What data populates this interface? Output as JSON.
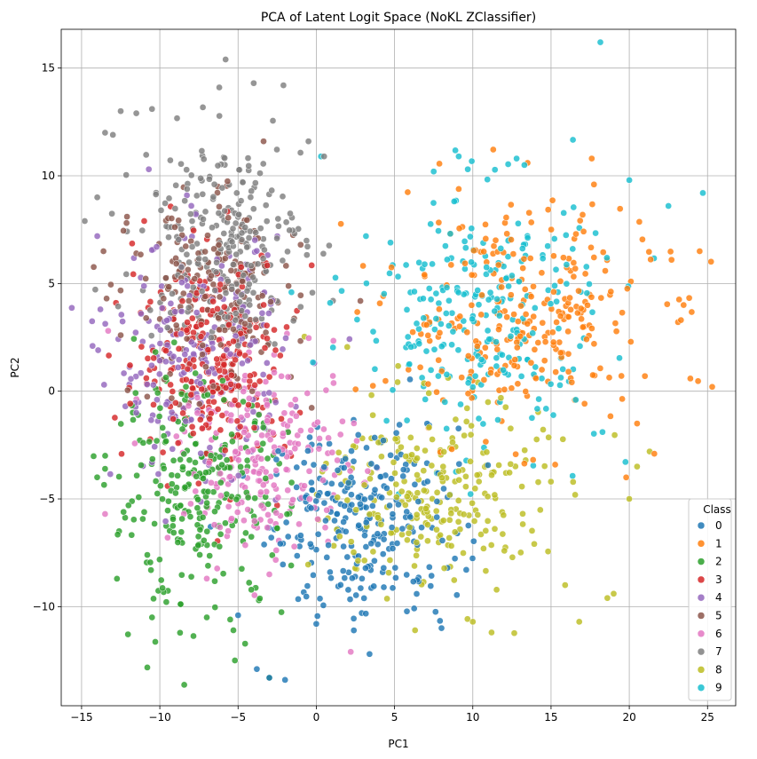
{
  "chart_data": {
    "type": "scatter",
    "title": "PCA of Latent Logit Space (NoKL ZClassifier)",
    "xlabel": "PC1",
    "ylabel": "PC2",
    "xlim": [
      -16.3,
      26.8
    ],
    "ylim": [
      -14.6,
      16.8
    ],
    "x_ticks": [
      -15,
      -10,
      -5,
      0,
      5,
      10,
      15,
      20,
      25
    ],
    "y_ticks": [
      -10,
      -5,
      0,
      5,
      10,
      15
    ],
    "grid": true,
    "legend": {
      "title": "Class",
      "placement": "lower right"
    },
    "series": [
      {
        "name": "0",
        "color": "#1f77b4",
        "center": [
          3.0,
          -6.0
        ],
        "spread": [
          3.0,
          2.2
        ],
        "count": 260,
        "points": [
          [
            -2.0,
            -13.4
          ],
          [
            -3.0,
            -13.3
          ],
          [
            -3.8,
            -12.9
          ],
          [
            3.4,
            -12.2
          ],
          [
            2.4,
            -11.1
          ],
          [
            0.0,
            -10.8
          ],
          [
            8.0,
            -11.0
          ],
          [
            -5.0,
            -10.4
          ],
          [
            2.9,
            -10.3
          ]
        ]
      },
      {
        "name": "1",
        "color": "#ff7f0e",
        "center": [
          13.0,
          3.5
        ],
        "spread": [
          4.2,
          2.6
        ],
        "count": 280,
        "points": [
          [
            25.3,
            0.2
          ],
          [
            24.5,
            6.5
          ],
          [
            23.3,
            3.3
          ],
          [
            22.7,
            6.1
          ],
          [
            17.6,
            10.8
          ],
          [
            21.0,
            0.7
          ],
          [
            21.6,
            -2.9
          ],
          [
            13.5,
            10.6
          ],
          [
            20.5,
            -1.5
          ],
          [
            19.8,
            -4.0
          ]
        ]
      },
      {
        "name": "2",
        "color": "#2ca02c",
        "center": [
          -7.5,
          -5.0
        ],
        "spread": [
          2.8,
          2.6
        ],
        "count": 260,
        "points": [
          [
            -13.5,
            -3.6
          ],
          [
            -12.6,
            -6.5
          ],
          [
            -10.5,
            -10.5
          ],
          [
            -7.0,
            -10.5
          ],
          [
            -5.2,
            -12.5
          ],
          [
            -3.0,
            -13.3
          ],
          [
            -10.8,
            -7.6
          ],
          [
            -12.0,
            -5.3
          ],
          [
            -5.5,
            -10.6
          ]
        ]
      },
      {
        "name": "3",
        "color": "#d62728",
        "center": [
          -6.5,
          1.5
        ],
        "spread": [
          2.5,
          2.5
        ],
        "count": 260,
        "points": [
          [
            -11.0,
            7.9
          ],
          [
            -12.8,
            4.1
          ],
          [
            -9.5,
            -4.4
          ],
          [
            -2.5,
            -5.3
          ],
          [
            -3.5,
            6.3
          ]
        ]
      },
      {
        "name": "4",
        "color": "#9467bd",
        "center": [
          -7.5,
          1.5
        ],
        "spread": [
          2.7,
          2.7
        ],
        "count": 220,
        "points": [
          [
            -14.0,
            7.2
          ],
          [
            -14.3,
            2.1
          ],
          [
            -12.2,
            -0.7
          ],
          [
            -13.8,
            3.8
          ],
          [
            -10.7,
            10.3
          ],
          [
            -11.5,
            -1.0
          ]
        ]
      },
      {
        "name": "5",
        "color": "#8c564b",
        "center": [
          -6.5,
          4.0
        ],
        "spread": [
          2.6,
          2.3
        ],
        "count": 200,
        "points": [
          [
            -13.6,
            6.5
          ],
          [
            -13.4,
            4.3
          ],
          [
            -12.1,
            8.1
          ],
          [
            -12.5,
            2.6
          ],
          [
            -11.5,
            6.4
          ],
          [
            -1.0,
            6.8
          ]
        ]
      },
      {
        "name": "6",
        "color": "#e377c2",
        "center": [
          -3.0,
          -3.0
        ],
        "spread": [
          2.8,
          2.2
        ],
        "count": 230,
        "points": [
          [
            -13.5,
            -5.7
          ],
          [
            -13.3,
            2.8
          ],
          [
            -9.5,
            -6.8
          ],
          [
            2.2,
            -12.1
          ],
          [
            -7.0,
            -8.7
          ],
          [
            -3.0,
            -8.5
          ]
        ]
      },
      {
        "name": "7",
        "color": "#7f7f7f",
        "center": [
          -6.0,
          7.0
        ],
        "spread": [
          2.6,
          2.4
        ],
        "count": 260,
        "points": [
          [
            -14.8,
            7.9
          ],
          [
            -5.8,
            15.4
          ],
          [
            -4.0,
            14.3
          ],
          [
            -6.2,
            14.1
          ],
          [
            -2.1,
            14.2
          ],
          [
            -10.5,
            13.1
          ],
          [
            -12.5,
            13.0
          ],
          [
            -11.5,
            12.9
          ],
          [
            -13.5,
            12.0
          ],
          [
            -13.0,
            11.9
          ],
          [
            -14.0,
            9.0
          ],
          [
            -0.5,
            11.6
          ],
          [
            0.5,
            10.9
          ]
        ]
      },
      {
        "name": "8",
        "color": "#bcbd22",
        "center": [
          7.5,
          -4.8
        ],
        "spread": [
          3.5,
          2.3
        ],
        "count": 250,
        "points": [
          [
            19.0,
            -9.4
          ],
          [
            18.6,
            -9.6
          ],
          [
            16.8,
            -10.7
          ],
          [
            15.9,
            -9.0
          ],
          [
            11.2,
            -11.2
          ],
          [
            10.0,
            -10.7
          ],
          [
            20.0,
            -5.0
          ],
          [
            20.5,
            -3.5
          ],
          [
            21.3,
            -2.8
          ]
        ]
      },
      {
        "name": "9",
        "color": "#17becf",
        "center": [
          10.5,
          3.5
        ],
        "spread": [
          4.0,
          3.0
        ],
        "count": 260,
        "points": [
          [
            0.3,
            10.9
          ],
          [
            9.1,
            10.9
          ],
          [
            12.8,
            10.8
          ],
          [
            13.3,
            10.5
          ],
          [
            24.7,
            9.2
          ],
          [
            7.5,
            10.2
          ],
          [
            20.0,
            9.8
          ],
          [
            22.5,
            8.6
          ]
        ]
      }
    ]
  }
}
